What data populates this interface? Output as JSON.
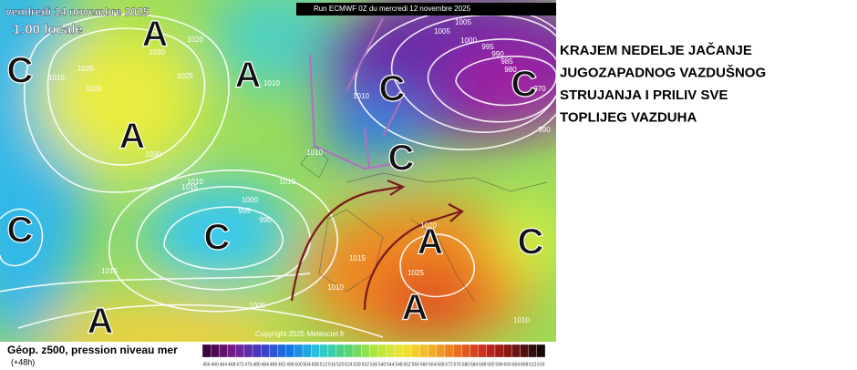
{
  "map": {
    "date": "vendredi 14 novembre 2025",
    "time": "1:00 locale",
    "run": "Run ECMWF 0Z du mercredi 12 novembre 2025",
    "copyright": "Copyright 2025 Meteociel.fr",
    "systems": [
      "A",
      "A",
      "A",
      "A",
      "A",
      "A",
      "C",
      "C",
      "C",
      "C",
      "C",
      "C",
      "C"
    ],
    "isobars": [
      "1020",
      "1030",
      "1025",
      "1020",
      "1025",
      "1015",
      "1030",
      "1010",
      "1015",
      "1010",
      "1000",
      "995",
      "990",
      "1010",
      "1005",
      "1010",
      "1005",
      "1000",
      "995",
      "990",
      "985",
      "980",
      "970",
      "990",
      "1010",
      "1020",
      "1025",
      "1015",
      "1010",
      "1015",
      "1005",
      "1010"
    ]
  },
  "legend": {
    "title": "Géop. z500, pression niveau mer",
    "lead": "(+48h)",
    "scale": [
      456,
      460,
      464,
      468,
      472,
      476,
      480,
      484,
      488,
      492,
      496,
      500,
      504,
      508,
      512,
      516,
      520,
      524,
      528,
      532,
      536,
      540,
      544,
      548,
      552,
      556,
      560,
      564,
      568,
      572,
      576,
      580,
      584,
      588,
      592,
      596,
      600,
      604,
      608,
      612,
      616
    ]
  },
  "headline": [
    "KRAJEM NEDELJE JAČANJE",
    "JUGOZAPADNOG VAZDUŠNOG",
    "STRUJANJA I PRILIV SVE",
    "TOPLIJEG VAZDUHA"
  ]
}
